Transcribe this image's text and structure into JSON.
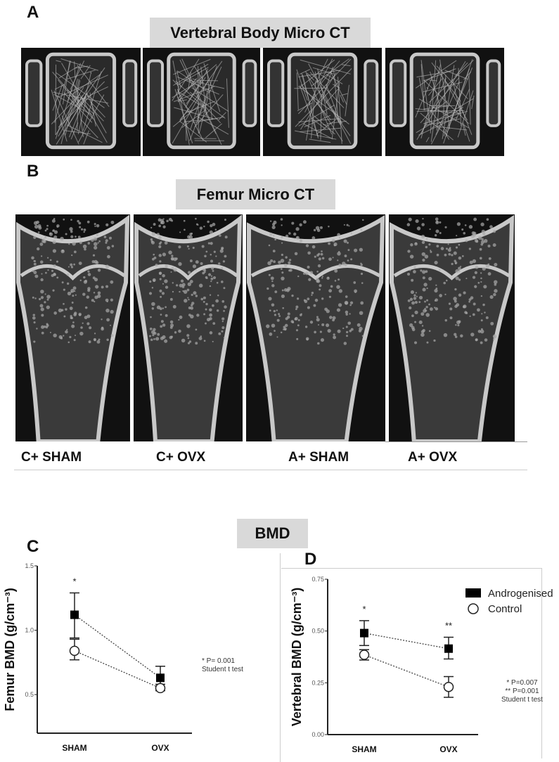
{
  "panel_a": {
    "label": "A",
    "title": "Vertebral Body Micro CT"
  },
  "panel_b": {
    "label": "B",
    "title": "Femur Micro CT",
    "groups": [
      "C+ SHAM",
      "C+ OVX",
      "A+ SHAM",
      "A+ OVX"
    ]
  },
  "bmd_title": "BMD",
  "colors": {
    "title_box": "#d9d9d9",
    "ct_background": "#111111",
    "bone": "#c8c8c8",
    "androgenised": "#000000",
    "control": "#ffffff"
  },
  "chart_data": [
    {
      "panel": "C",
      "type": "line",
      "ylabel": "Femur  BMD (g/cm⁻³)",
      "categories": [
        "SHAM",
        "OVX"
      ],
      "ylim": [
        0.2,
        1.5
      ],
      "yticks": [
        "0.5",
        "1.0",
        "1.5"
      ],
      "grid": false,
      "series": [
        {
          "marker": "filled-square",
          "values": [
            1.12,
            0.63
          ],
          "error_upper": [
            1.29,
            0.72
          ],
          "error_lower": [
            0.94,
            0.55
          ]
        },
        {
          "marker": "open-circle",
          "values": [
            0.84,
            0.55
          ],
          "error_upper": [
            0.93,
            0.58
          ],
          "error_lower": [
            0.77,
            0.53
          ]
        }
      ],
      "significance": [
        "*",
        ""
      ],
      "note": [
        "* P= 0.001",
        "Student t test"
      ]
    },
    {
      "panel": "D",
      "type": "line",
      "ylabel": "Vertebral BMD (g/cm⁻³)",
      "categories": [
        "SHAM",
        "OVX"
      ],
      "ylim": [
        0,
        0.75
      ],
      "yticks": [
        "0.00",
        "0.25",
        "0.50",
        "0.75"
      ],
      "grid": false,
      "legend_position": "top-right",
      "series": [
        {
          "name": "Androgenised",
          "marker": "filled-square",
          "values": [
            0.49,
            0.415
          ],
          "error_upper": [
            0.55,
            0.47
          ],
          "error_lower": [
            0.43,
            0.365
          ]
        },
        {
          "name": "Control",
          "marker": "open-circle",
          "values": [
            0.385,
            0.23
          ],
          "error_upper": [
            0.41,
            0.28
          ],
          "error_lower": [
            0.36,
            0.18
          ]
        }
      ],
      "significance": [
        "*",
        "**"
      ],
      "note": [
        "* P=0.007",
        "** P=0.001",
        "Student t test"
      ]
    }
  ]
}
